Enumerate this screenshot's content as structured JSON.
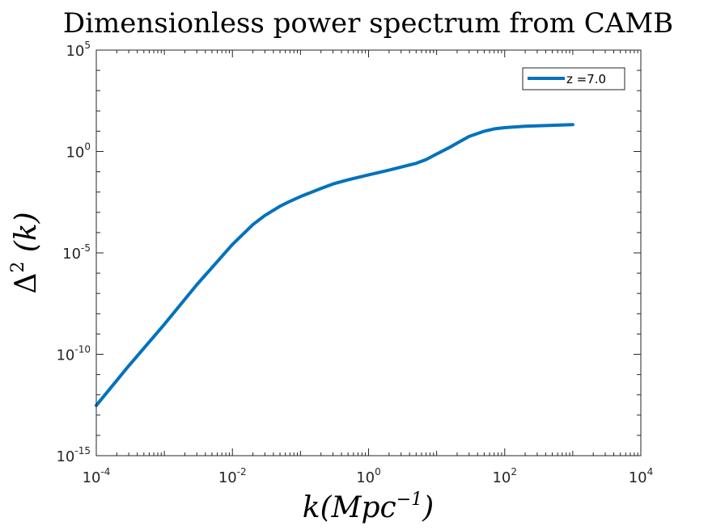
{
  "chart_data": {
    "type": "line",
    "title": "Dimensionless power spectrum from CAMB",
    "xlabel_base": "k(Mpc",
    "xlabel_exp": "−1",
    "xlabel_close": ")",
    "ylabel_base": "Δ",
    "ylabel_exp": "2",
    "ylabel_rest": " (k)",
    "xscale": "log",
    "yscale": "log",
    "xlim": [
      0.0001,
      10000
    ],
    "ylim": [
      1e-15,
      100000
    ],
    "grid": false,
    "legend_position": "top-right",
    "x_ticks": [
      {
        "base": "10",
        "exp": "-4"
      },
      {
        "base": "10",
        "exp": "-2"
      },
      {
        "base": "10",
        "exp": "0"
      },
      {
        "base": "10",
        "exp": "2"
      },
      {
        "base": "10",
        "exp": "4"
      }
    ],
    "y_ticks": [
      {
        "base": "10",
        "exp": "-15"
      },
      {
        "base": "10",
        "exp": "-10"
      },
      {
        "base": "10",
        "exp": "-5"
      },
      {
        "base": "10",
        "exp": "0"
      },
      {
        "base": "10",
        "exp": "5"
      }
    ],
    "series": [
      {
        "name": "z =7.0",
        "color": "#0072bd",
        "x": [
          0.0001,
          0.0003,
          0.001,
          0.003,
          0.01,
          0.02,
          0.03,
          0.05,
          0.07,
          0.1,
          0.2,
          0.3,
          0.5,
          1,
          2,
          3,
          5,
          7,
          10,
          15,
          20,
          30,
          50,
          70,
          100,
          200,
          300,
          500,
          1000
        ],
        "y": [
          3e-13,
          2.7e-11,
          3e-09,
          2.7e-07,
          2.6e-05,
          0.00025,
          0.0007,
          0.002,
          0.0035,
          0.006,
          0.015,
          0.025,
          0.04,
          0.07,
          0.12,
          0.17,
          0.26,
          0.4,
          0.75,
          1.5,
          2.6,
          5.5,
          10,
          13,
          15,
          17.5,
          18.5,
          19.5,
          21
        ]
      }
    ]
  }
}
